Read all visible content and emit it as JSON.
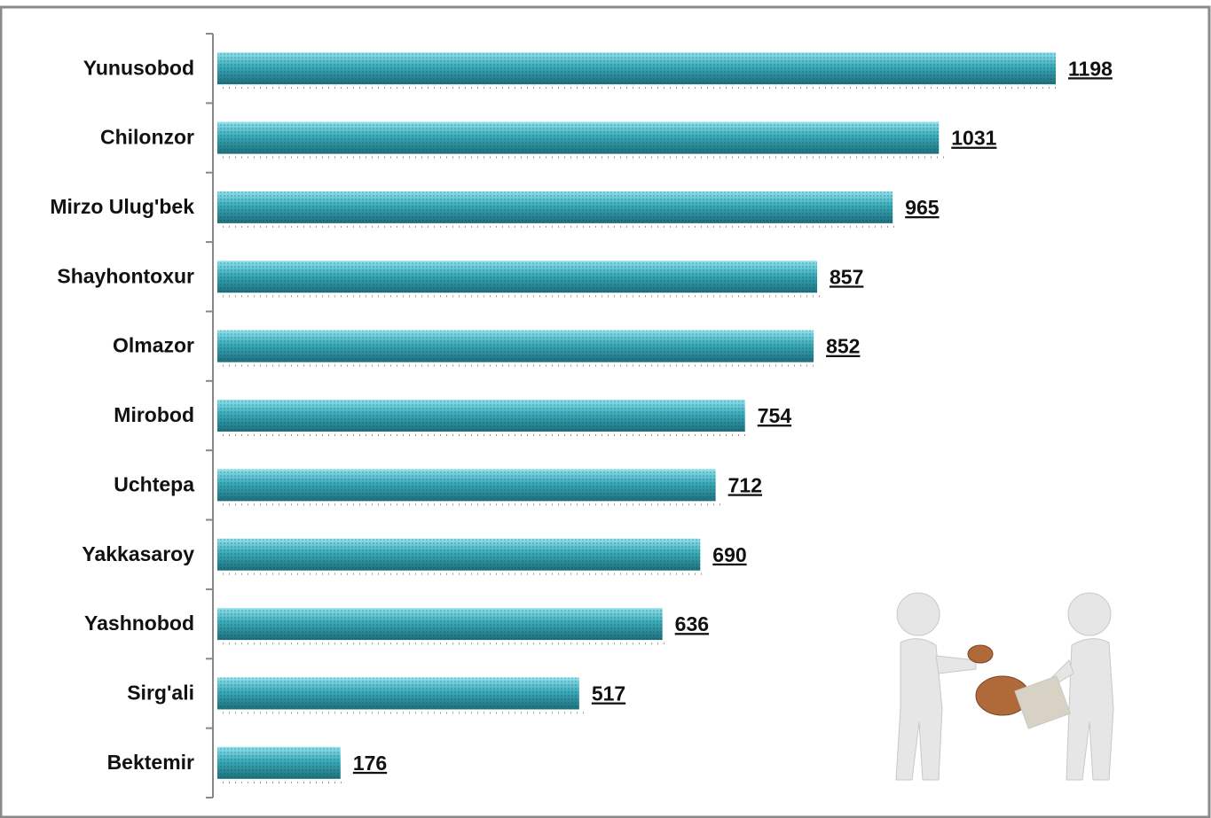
{
  "chart_data": {
    "type": "bar",
    "orientation": "horizontal",
    "categories": [
      "Yunusobod",
      "Chilonzor",
      "Mirzo Ulug'bek",
      "Shayhontoxur",
      "Olmazor",
      "Mirobod",
      "Uchtepa",
      "Yakkasaroy",
      "Yashnobod",
      "Sirg'ali",
      "Bektemir"
    ],
    "values": [
      1198,
      1031,
      965,
      857,
      852,
      754,
      712,
      690,
      636,
      517,
      176
    ],
    "color": "#3aa9b8"
  }
}
